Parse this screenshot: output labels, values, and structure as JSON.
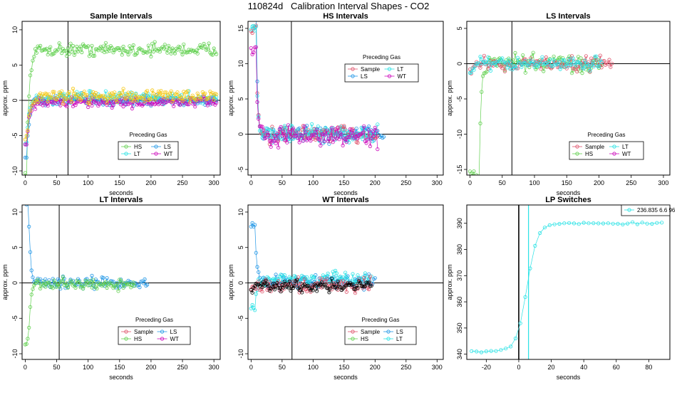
{
  "page_title": "110824d   Calibration Interval Shapes - CO2",
  "colors": {
    "Sample": "#DF536B",
    "HS": "#61D04F",
    "LS": "#2297E6",
    "LT": "#28E2E5",
    "WT": "#CD0BBC",
    "yellow": "#F5C710",
    "black": "#000000"
  },
  "chart_data": [
    {
      "type": "scatter",
      "title": "Sample Intervals",
      "xlabel": "seconds",
      "ylabel": "approx. ppm",
      "xlim": [
        -5,
        310
      ],
      "ylim": [
        -10.6,
        11.2
      ],
      "xticks": [
        "0",
        "50",
        "100",
        "150",
        "200",
        "250",
        "300"
      ],
      "yticks": [
        "-10",
        "-5",
        "0",
        "5",
        "10"
      ],
      "vline": 68,
      "legend": {
        "title": "Preceding Gas",
        "entries": [
          "HS",
          "LS",
          "LT",
          "WT"
        ]
      },
      "series": [
        {
          "name": "HS",
          "shape": "rise",
          "start": -10.5,
          "level": 7.2,
          "tau": 4,
          "t0": 2,
          "noise": 0.9,
          "xmax": 305
        },
        {
          "name": "LS",
          "shape": "rise",
          "start": -8,
          "level": 0,
          "tau": 4,
          "t0": 2,
          "noise": 0.8,
          "xmax": 305
        },
        {
          "name": "LT",
          "shape": "rise",
          "start": -6,
          "level": 0.3,
          "tau": 4,
          "t0": 2,
          "noise": 0.8,
          "xmax": 305
        },
        {
          "name": "WT",
          "shape": "rise",
          "start": -6.5,
          "level": -0.3,
          "tau": 4,
          "t0": 2,
          "noise": 0.7,
          "xmax": 305
        },
        {
          "name": "yellow",
          "shape": "rise",
          "start": -5,
          "level": 0.6,
          "tau": 5,
          "t0": 3,
          "noise": 0.9,
          "xmax": 305
        }
      ]
    },
    {
      "type": "scatter",
      "title": "HS Intervals",
      "xlabel": "seconds",
      "ylabel": "approx. ppm",
      "xlim": [
        -5,
        310
      ],
      "ylim": [
        -5.8,
        16
      ],
      "xticks": [
        "0",
        "50",
        "100",
        "150",
        "200",
        "250",
        "300"
      ],
      "yticks": [
        "-5",
        "0",
        "5",
        "10",
        "15"
      ],
      "vline": 65,
      "legend": {
        "title": "Preceding Gas",
        "entries": [
          "Sample",
          "LT",
          "LS",
          "WT"
        ]
      },
      "series": [
        {
          "name": "LS",
          "shape": "decay",
          "start": 17,
          "level": 0,
          "tau": 2.2,
          "t0": 8,
          "noise": 1.3,
          "xmax": 215
        },
        {
          "name": "Sample",
          "shape": "decay",
          "start": 15,
          "level": 0,
          "tau": 2.2,
          "t0": 8,
          "noise": 1.2,
          "xmax": 205
        },
        {
          "name": "LT",
          "shape": "decay",
          "start": 15,
          "level": 0,
          "tau": 2.2,
          "t0": 8,
          "noise": 1.2,
          "xmax": 205
        },
        {
          "name": "WT",
          "shape": "decay",
          "start": 12,
          "level": -0.3,
          "tau": 2.2,
          "t0": 8,
          "noise": 1.4,
          "xmax": 205
        }
      ]
    },
    {
      "type": "scatter",
      "title": "LS Intervals",
      "xlabel": "seconds",
      "ylabel": "approx. ppm",
      "xlim": [
        -5,
        310
      ],
      "ylim": [
        -15.8,
        6
      ],
      "xticks": [
        "0",
        "50",
        "100",
        "150",
        "200",
        "250",
        "300"
      ],
      "yticks": [
        "-15",
        "-10",
        "-5",
        "0",
        "5"
      ],
      "vline": 65,
      "legend": {
        "title": "Preceding Gas",
        "entries": [
          "Sample",
          "LT",
          "HS",
          "WT"
        ]
      },
      "series": [
        {
          "name": "HS",
          "shape": "rise",
          "start": -16,
          "level": 0,
          "tau": 3,
          "t0": 14,
          "noise": 1.3,
          "xmax": 205
        },
        {
          "name": "Sample",
          "shape": "rise",
          "start": -1,
          "level": 0,
          "tau": 3,
          "t0": 2,
          "noise": 1.0,
          "xmax": 220
        },
        {
          "name": "LT",
          "shape": "rise",
          "start": -1,
          "level": 0,
          "tau": 3,
          "t0": 2,
          "noise": 0.9,
          "xmax": 205
        }
      ]
    },
    {
      "type": "scatter",
      "title": "LT Intervals",
      "xlabel": "seconds",
      "ylabel": "approx. ppm",
      "xlim": [
        -5,
        310
      ],
      "ylim": [
        -10.8,
        11
      ],
      "xticks": [
        "0",
        "50",
        "100",
        "150",
        "200",
        "250",
        "300"
      ],
      "yticks": [
        "-10",
        "-5",
        "0",
        "5",
        "10"
      ],
      "vline": 54,
      "legend": {
        "title": "Preceding Gas",
        "entries": [
          "Sample",
          "LS",
          "HS",
          "WT"
        ]
      },
      "series": [
        {
          "name": "LS",
          "shape": "decay",
          "start": 11.5,
          "level": 0,
          "tau": 3,
          "t0": 5,
          "noise": 0.8,
          "xmax": 195
        },
        {
          "name": "HS",
          "shape": "rise",
          "start": -8.5,
          "level": -0.2,
          "tau": 3,
          "t0": 5,
          "noise": 0.8,
          "xmax": 175
        }
      ]
    },
    {
      "type": "scatter",
      "title": "WT Intervals",
      "xlabel": "seconds",
      "ylabel": "approx. ppm",
      "xlim": [
        -5,
        310
      ],
      "ylim": [
        -10.8,
        11
      ],
      "xticks": [
        "0",
        "50",
        "100",
        "150",
        "200",
        "250",
        "300"
      ],
      "yticks": [
        "-10",
        "-5",
        "0",
        "5",
        "10"
      ],
      "vline": 66,
      "legend": {
        "title": "Preceding Gas",
        "entries": [
          "Sample",
          "LS",
          "HS",
          "LT"
        ]
      },
      "series": [
        {
          "name": "LS",
          "shape": "decay",
          "start": 8,
          "level": 0.2,
          "tau": 3,
          "t0": 6,
          "noise": 0.9,
          "xmax": 200
        },
        {
          "name": "LT",
          "shape": "rise",
          "start": -3.5,
          "level": 0.5,
          "tau": 3,
          "t0": 6,
          "noise": 0.9,
          "xmax": 195
        },
        {
          "name": "Sample",
          "shape": "rise",
          "start": -1,
          "level": -0.3,
          "tau": 3,
          "t0": 2,
          "noise": 1.1,
          "xmax": 195
        },
        {
          "name": "black",
          "shape": "rise",
          "start": -1,
          "level": -0.4,
          "tau": 3,
          "t0": 2,
          "noise": 0.8,
          "xmax": 195
        }
      ]
    },
    {
      "type": "scatter",
      "title": "LP Switches",
      "xlabel": "seconds",
      "ylabel": "approx. ppm",
      "xlim": [
        -32,
        93
      ],
      "ylim": [
        338,
        397
      ],
      "xticks": [
        "-20",
        "0",
        "20",
        "40",
        "60",
        "80"
      ],
      "yticks": [
        "340",
        "350",
        "360",
        "370",
        "380",
        "390"
      ],
      "vline_black": 0,
      "vline_color": 6,
      "legend": {
        "entries": [
          "236.835 6.6 96"
        ]
      },
      "series": [
        {
          "name": "LT",
          "shape": "sigmoid",
          "low": 341,
          "high": 390,
          "center": 5,
          "width": 3.2,
          "noise": 0.4,
          "xmin": -29,
          "xmax": 88,
          "step": 3
        }
      ]
    }
  ]
}
